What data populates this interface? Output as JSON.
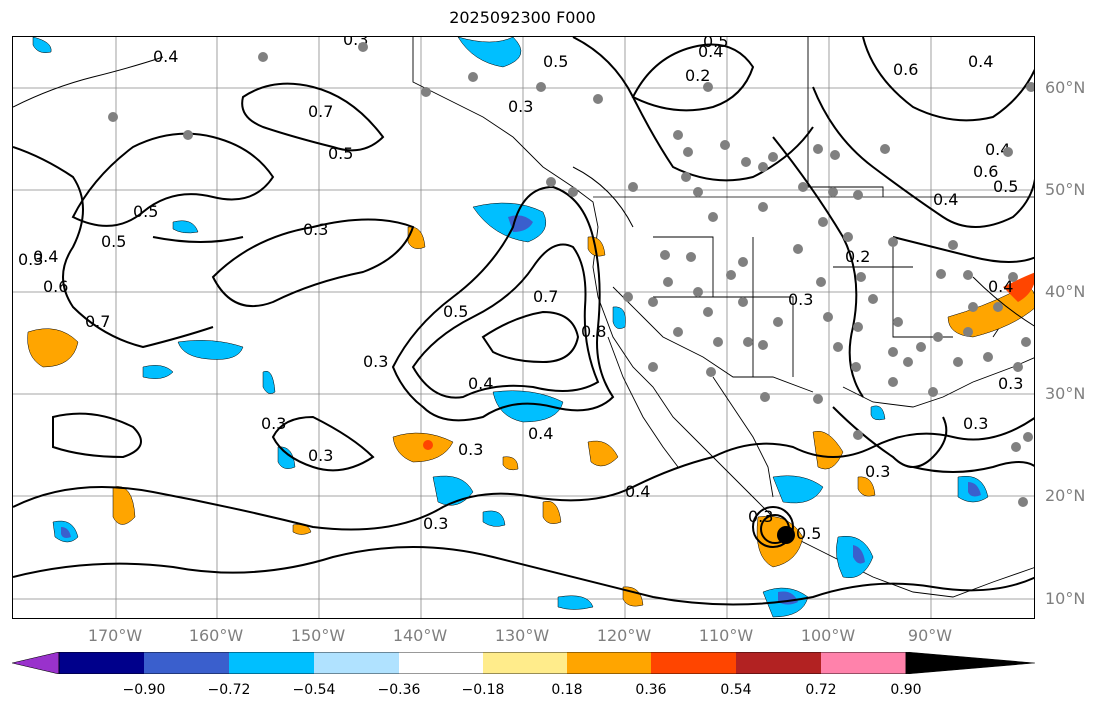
{
  "title": "2025092300 F000",
  "lat_labels": [
    "60°N",
    "50°N",
    "40°N",
    "30°N",
    "20°N",
    "10°N"
  ],
  "lon_labels": [
    "170°W",
    "160°W",
    "150°W",
    "140°W",
    "130°W",
    "120°W",
    "110°W",
    "100°W",
    "90°W"
  ],
  "colorbar": {
    "ticks": [
      "−0.90",
      "−0.72",
      "−0.54",
      "−0.36",
      "−0.18",
      "0.18",
      "0.36",
      "0.54",
      "0.72",
      "0.90"
    ],
    "colors": [
      "#9932cc",
      "#00008b",
      "#3a5fcd",
      "#00bfff",
      "#b0e2ff",
      "#ffffff",
      "#ffec8b",
      "#ffa500",
      "#ff4500",
      "#b22222",
      "#ff82ab"
    ]
  },
  "contour_labels": [
    "0.5",
    "0.4",
    "0.2",
    "0.5",
    "0.3",
    "0.6",
    "0.4",
    "0.3",
    "0.5",
    "0.7",
    "0.4",
    "0.5",
    "0.3",
    "0.5",
    "0.3",
    "0.4",
    "0.6",
    "0.7",
    "0.5",
    "0.7",
    "0.8",
    "0.3",
    "0.4",
    "0.4",
    "0.3",
    "0.3",
    "0.3",
    "0.3",
    "0.4",
    "0.3",
    "0.5",
    "0.3",
    "0.2",
    "0.3",
    "0.4",
    "0.3",
    "0.4",
    "0.3",
    "0.5",
    "0.4",
    "0.6"
  ]
}
